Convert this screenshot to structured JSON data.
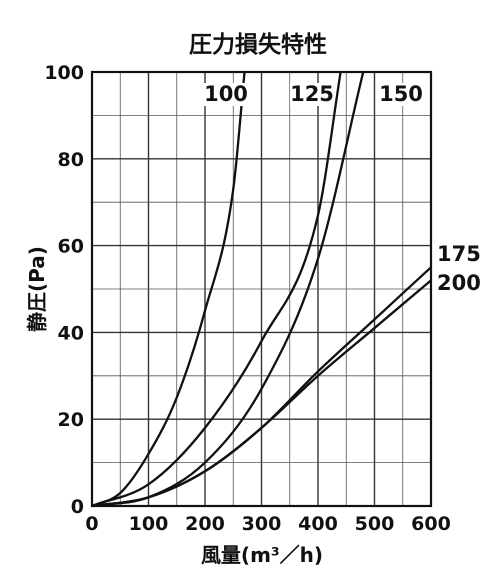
{
  "chart_data": {
    "type": "line",
    "title": "圧力損失特性",
    "xlabel": "風量(m³／h)",
    "ylabel": "静圧(Pa)",
    "xlim": [
      0,
      600
    ],
    "ylim": [
      0,
      100
    ],
    "x_ticks": [
      0,
      100,
      200,
      300,
      400,
      500,
      600
    ],
    "y_ticks": [
      0,
      20,
      40,
      60,
      80,
      100
    ],
    "grid": true,
    "series": [
      {
        "name": "100",
        "x": [
          0,
          50,
          100,
          150,
          200,
          250,
          270
        ],
        "y": [
          0,
          3,
          12,
          25,
          45,
          73,
          100
        ]
      },
      {
        "name": "125",
        "x": [
          0,
          100,
          200,
          300,
          400,
          440
        ],
        "y": [
          0,
          5,
          18,
          38,
          67,
          100
        ]
      },
      {
        "name": "150",
        "x": [
          0,
          100,
          200,
          300,
          400,
          480
        ],
        "y": [
          0,
          2,
          10,
          27,
          57,
          100
        ]
      },
      {
        "name": "175",
        "x": [
          0,
          100,
          200,
          300,
          400,
          500,
          600
        ],
        "y": [
          0,
          2,
          8,
          18,
          31,
          43,
          55
        ]
      },
      {
        "name": "200",
        "x": [
          0,
          100,
          200,
          300,
          400,
          500,
          600
        ],
        "y": [
          0,
          2,
          8,
          18,
          30,
          41,
          52
        ]
      }
    ]
  }
}
